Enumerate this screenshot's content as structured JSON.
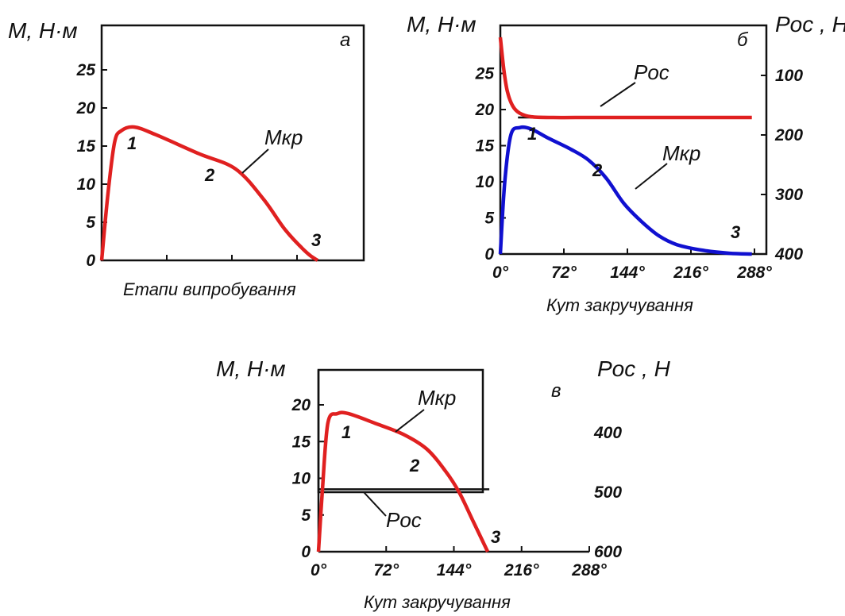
{
  "chart_data": [
    {
      "type": "line",
      "panel_label": "а",
      "ylabel": "М, Н·м",
      "xlabel": "Етапи випробування",
      "ylim": [
        0,
        30
      ],
      "yticks": [
        "0",
        "5",
        "10",
        "15",
        "20",
        "25"
      ],
      "series": [
        {
          "name": "Мкр",
          "x": [
            0,
            0.03,
            0.06,
            0.09,
            0.15,
            0.25,
            0.45,
            0.62,
            0.75,
            0.85,
            0.95,
            1.0
          ],
          "y": [
            0,
            9,
            15.5,
            17,
            17.5,
            16.5,
            14,
            12,
            8,
            4,
            1,
            0
          ]
        }
      ],
      "point_labels": [
        "1",
        "2",
        "3"
      ]
    },
    {
      "type": "line",
      "panel_label": "б",
      "ylabel": "М, Н·м",
      "y2label": "Pос , Н",
      "xlabel": "Кут закручування",
      "xticks": [
        "0°",
        "72°",
        "144°",
        "216°",
        "288°"
      ],
      "xlim": [
        0,
        288
      ],
      "ylim": [
        0,
        30
      ],
      "y2ticks": [
        "100",
        "200",
        "300",
        "400"
      ],
      "yticks": [
        "0",
        "5",
        "10",
        "15",
        "20",
        "25"
      ],
      "series": [
        {
          "name": "Мкр",
          "x": [
            0,
            5,
            12,
            22,
            35,
            55,
            80,
            100,
            120,
            140,
            160,
            180,
            200,
            230,
            260,
            285
          ],
          "y": [
            0,
            10,
            16.5,
            17.5,
            17.3,
            16,
            14.5,
            13,
            10.5,
            7,
            4.5,
            2.5,
            1.3,
            0.5,
            0.1,
            0
          ]
        },
        {
          "name": "Pос",
          "x": [
            0,
            4,
            8,
            14,
            22,
            35,
            60,
            100,
            150,
            200,
            250,
            285
          ],
          "y": [
            30,
            25.5,
            22.5,
            20.5,
            19.5,
            19,
            18.9,
            18.9,
            18.9,
            18.9,
            18.9,
            18.9
          ]
        }
      ],
      "point_labels": [
        "1",
        "2",
        "3"
      ]
    },
    {
      "type": "line",
      "panel_label": "в",
      "ylabel": "М, Н·м",
      "y2label": "Pос , Н",
      "xlabel": "Кут закручування",
      "xticks": [
        "0°",
        "72°",
        "144°",
        "216°",
        "288°"
      ],
      "xlim": [
        0,
        288
      ],
      "ylim": [
        0,
        23
      ],
      "yticks": [
        "0",
        "5",
        "10",
        "15",
        "20"
      ],
      "y2ticks": [
        "400",
        "500",
        "600"
      ],
      "series": [
        {
          "name": "Мкр",
          "x": [
            0,
            4,
            10,
            20,
            32,
            60,
            90,
            115,
            135,
            150,
            165,
            180
          ],
          "y": [
            0,
            8,
            17.5,
            18.8,
            18.8,
            17.5,
            16,
            14,
            11,
            8,
            4,
            0
          ]
        },
        {
          "name": "Pос",
          "x": [
            0,
            180
          ],
          "y": [
            8.5,
            8.5
          ]
        }
      ],
      "point_labels": [
        "1",
        "2",
        "3"
      ]
    }
  ]
}
